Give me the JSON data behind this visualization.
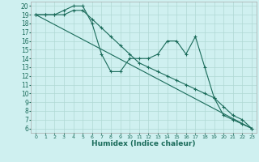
{
  "xlabel": "Humidex (Indice chaleur)",
  "background_color": "#cff0f0",
  "grid_color": "#b0d8d4",
  "line_color": "#1a6b5a",
  "series": [
    {
      "x": [
        0,
        1,
        2,
        3,
        4,
        5,
        6,
        7,
        8,
        9,
        10,
        11,
        12,
        13,
        14,
        15,
        16,
        17,
        18,
        19,
        20,
        21,
        22,
        23
      ],
      "y": [
        19,
        19,
        19,
        19.5,
        20,
        20,
        18,
        14.5,
        12.5,
        12.5,
        14,
        14,
        14,
        14.5,
        16,
        16,
        14.5,
        16.5,
        13,
        9.5,
        7.5,
        7,
        6.5,
        6
      ]
    },
    {
      "x": [
        0,
        1,
        2,
        3,
        4,
        5,
        6,
        7,
        8,
        9,
        10,
        11,
        12,
        13,
        14,
        15,
        16,
        17,
        18,
        19,
        20,
        21,
        22,
        23
      ],
      "y": [
        19,
        19,
        19,
        19,
        19.5,
        19.5,
        18.5,
        17.5,
        16.5,
        15.5,
        14.5,
        13.5,
        13,
        12.5,
        12,
        11.5,
        11,
        10.5,
        10,
        9.5,
        8.5,
        7.5,
        7,
        6
      ]
    },
    {
      "x": [
        0,
        23
      ],
      "y": [
        19,
        6
      ]
    }
  ],
  "xlim": [
    -0.5,
    23.5
  ],
  "ylim": [
    5.5,
    20.5
  ],
  "yticks": [
    6,
    7,
    8,
    9,
    10,
    11,
    12,
    13,
    14,
    15,
    16,
    17,
    18,
    19,
    20
  ],
  "xticks": [
    0,
    1,
    2,
    3,
    4,
    5,
    6,
    7,
    8,
    9,
    10,
    11,
    12,
    13,
    14,
    15,
    16,
    17,
    18,
    19,
    20,
    21,
    22,
    23
  ],
  "xlabel_fontsize": 6.5,
  "tick_fontsize_y": 5.5,
  "tick_fontsize_x": 4.5
}
